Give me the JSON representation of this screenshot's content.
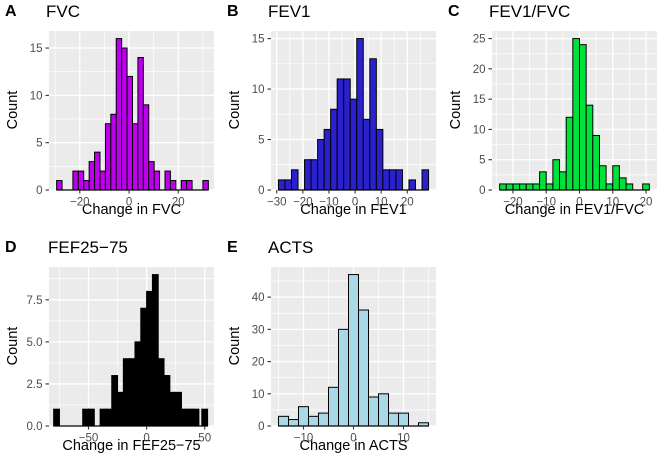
{
  "figure": {
    "background": "#FFFFFF",
    "panel_background": "#EBEBEB",
    "grid_color": "#FFFFFF",
    "tick_color": "#333333",
    "tick_label_color": "#4D4D4D",
    "text_color": "#000000",
    "bar_outline": "#000000"
  },
  "chart_data": [
    {
      "type": "bar",
      "panel_letter": "A",
      "title": "FVC",
      "xlabel": "Change in FVC",
      "ylabel": "Count",
      "fill": "#BC00EC",
      "binwidth": 2.2,
      "centers": [
        -28.3,
        -26.1,
        -23.9,
        -21.7,
        -19.5,
        -17.3,
        -15.1,
        -12.9,
        -10.7,
        -8.5,
        -6.3,
        -4.1,
        -1.9,
        0.3,
        2.5,
        4.7,
        6.9,
        9.1,
        11.3,
        13.5,
        15.7,
        17.9,
        20.1,
        22.3,
        24.5,
        26.7,
        28.9,
        31.1
      ],
      "values": [
        1,
        0,
        0,
        2,
        2,
        1,
        3,
        4,
        2,
        7,
        8,
        16,
        15,
        12,
        7,
        14,
        9,
        3,
        2,
        0,
        2,
        1,
        0,
        1,
        1,
        0,
        0,
        1
      ],
      "xlim": [
        -32.5,
        34.5
      ],
      "ylim": [
        0,
        16.8
      ],
      "xticks": {
        "values": [
          -20,
          0,
          20
        ],
        "labels": [
          "−20",
          "0",
          "20"
        ]
      },
      "yticks": {
        "values": [
          0,
          5,
          10,
          15
        ],
        "labels": [
          "0",
          "5",
          "10",
          "15"
        ]
      },
      "grid": "on",
      "legend": "none"
    },
    {
      "type": "bar",
      "panel_letter": "B",
      "title": "FEV1",
      "xlabel": "Change in FEV1",
      "ylabel": "Count",
      "fill": "#2A20CE",
      "binwidth": 2.5,
      "centers": [
        -28.1,
        -25.6,
        -23.1,
        -20.6,
        -18.1,
        -15.6,
        -13.1,
        -10.6,
        -8.1,
        -5.6,
        -3.1,
        -0.6,
        1.9,
        4.4,
        6.9,
        9.4,
        11.9,
        14.4,
        16.9,
        19.4,
        21.9,
        24.4,
        26.9
      ],
      "values": [
        1,
        1,
        2,
        0,
        3,
        3,
        5,
        6,
        8,
        11,
        11,
        9,
        15,
        7,
        13,
        6,
        2,
        2,
        2,
        0,
        1,
        0,
        2
      ],
      "xlim": [
        -32.2,
        31.0
      ],
      "ylim": [
        0,
        15.75
      ],
      "xticks": {
        "values": [
          -30,
          -20,
          -10,
          0,
          10,
          20
        ],
        "labels": [
          "−30",
          "−20",
          "−10",
          "0",
          "10",
          "20"
        ]
      },
      "yticks": {
        "values": [
          0,
          5,
          10,
          15
        ],
        "labels": [
          "0",
          "5",
          "10",
          "15"
        ]
      },
      "grid": "on",
      "legend": "none"
    },
    {
      "type": "bar",
      "panel_letter": "C",
      "title": "FEV1/FVC",
      "xlabel": "Change in FEV1/FVC",
      "ylabel": "Count",
      "fill": "#00E23A",
      "binwidth": 2,
      "centers": [
        -23,
        -21,
        -19,
        -17,
        -15,
        -13,
        -11,
        -9,
        -7,
        -5,
        -3,
        -1,
        1,
        3,
        5,
        7,
        9,
        11,
        13,
        15,
        20
      ],
      "values": [
        1,
        1,
        1,
        1,
        1,
        1,
        3,
        1,
        5,
        3,
        12,
        25,
        24,
        14,
        9,
        4,
        1,
        4,
        2,
        1,
        1
      ],
      "xlim": [
        -26.3,
        23.3
      ],
      "ylim": [
        0,
        26.25
      ],
      "xticks": {
        "values": [
          -20,
          -10,
          0,
          10,
          20
        ],
        "labels": [
          "−20",
          "−10",
          "0",
          "10",
          "20"
        ]
      },
      "yticks": {
        "values": [
          0,
          5,
          10,
          15,
          20,
          25
        ],
        "labels": [
          "0",
          "5",
          "10",
          "15",
          "20",
          "25"
        ]
      },
      "grid": "on",
      "legend": "none"
    },
    {
      "type": "bar",
      "panel_letter": "D",
      "title": "FEF25−75",
      "xlabel": "Change in FEF25−75",
      "ylabel": "Count",
      "fill": "#000000",
      "binwidth": 5,
      "centers": [
        -77.5,
        -52.5,
        -47.5,
        -37.5,
        -32.5,
        -27.5,
        -22.5,
        -17.5,
        -12.5,
        -7.5,
        -2.5,
        2.5,
        7.5,
        12.5,
        17.5,
        22.5,
        27.5,
        32.5,
        37.5,
        42.5,
        50
      ],
      "values": [
        1,
        1,
        1,
        1,
        1,
        3,
        2,
        4,
        4,
        5,
        7,
        8,
        9,
        4,
        3,
        2,
        2,
        1,
        1,
        1,
        1
      ],
      "xlim": [
        -84,
        58
      ],
      "ylim": [
        0,
        9.45
      ],
      "xticks": {
        "values": [
          -50,
          0,
          50
        ],
        "labels": [
          "−50",
          "0",
          "50"
        ]
      },
      "yticks": {
        "values": [
          0,
          2.5,
          5,
          7.5
        ],
        "labels": [
          "0.0",
          "2.5",
          "5.0",
          "7.5"
        ]
      },
      "grid": "on",
      "legend": "none"
    },
    {
      "type": "bar",
      "panel_letter": "E",
      "title": "ACTS",
      "xlabel": "Change in ACTS",
      "ylabel": "Count",
      "fill": "#A9D8E6",
      "binwidth": 2,
      "centers": [
        -14,
        -12,
        -10,
        -8,
        -6,
        -4,
        -2,
        0,
        2,
        4,
        6,
        8,
        10,
        12,
        14
      ],
      "values": [
        3,
        2,
        6,
        3,
        4,
        12,
        30,
        47,
        36,
        9,
        10,
        4,
        4,
        0,
        1
      ],
      "xlim": [
        -16.5,
        16.5
      ],
      "ylim": [
        0,
        49.35
      ],
      "xticks": {
        "values": [
          -10,
          0,
          10
        ],
        "labels": [
          "−10",
          "0",
          "10"
        ]
      },
      "yticks": {
        "values": [
          0,
          10,
          20,
          30,
          40
        ],
        "labels": [
          "0",
          "10",
          "20",
          "30",
          "40"
        ]
      },
      "grid": "on",
      "legend": "none"
    }
  ]
}
